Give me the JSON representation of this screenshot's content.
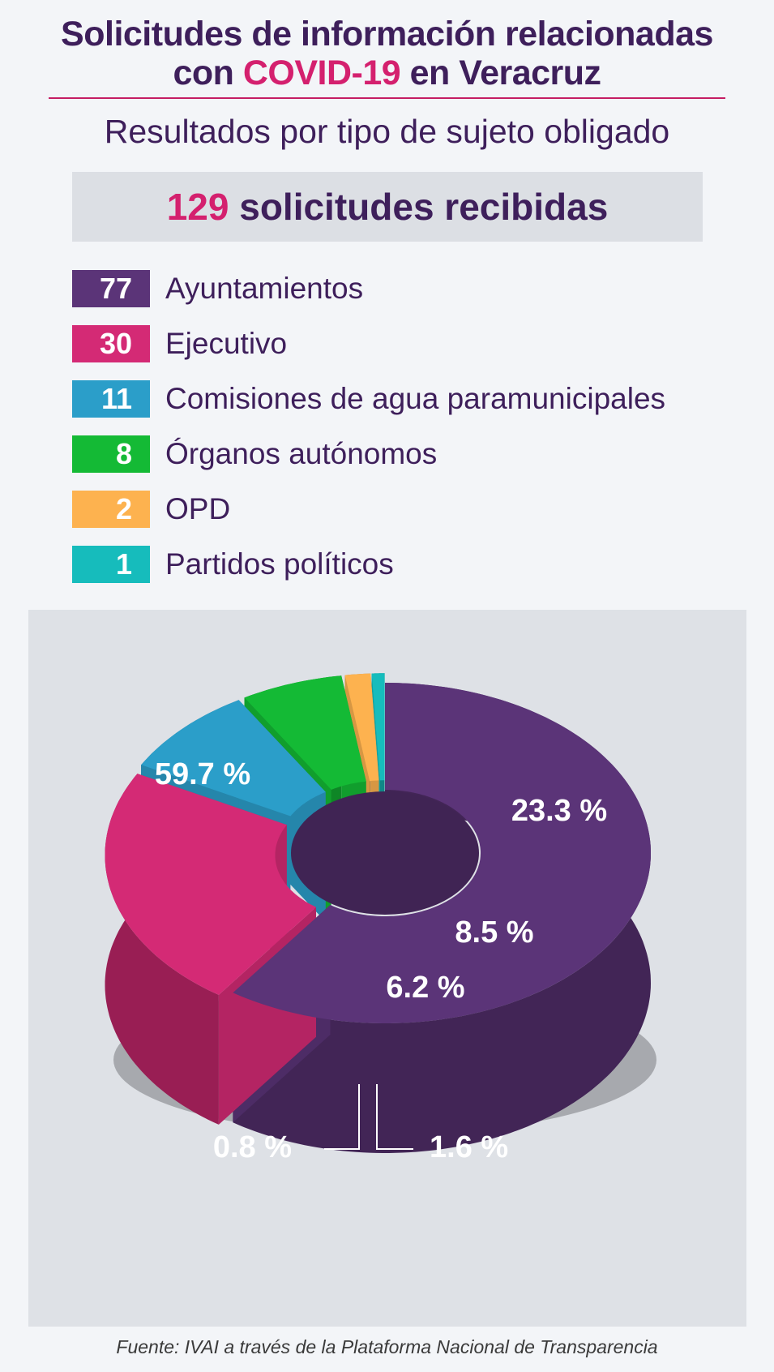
{
  "header": {
    "title_line1": "Solicitudes de información relacionadas",
    "title_line2_pre": "con ",
    "title_line2_accent": "COVID-19",
    "title_line2_post": " en Veracruz",
    "subtitle": "Resultados por tipo de sujeto obligado"
  },
  "total": {
    "number": "129",
    "label": " solicitudes recibidas"
  },
  "legend": [
    {
      "count": "77",
      "label": "Ayuntamientos",
      "color": "#5b3478"
    },
    {
      "count": "30",
      "label": "Ejecutivo",
      "color": "#d42a75"
    },
    {
      "count": "11",
      "label": "Comisiones de agua paramunicipales",
      "color": "#2b9ec9"
    },
    {
      "count": "8",
      "label": "Órganos autónomos",
      "color": "#14ba35"
    },
    {
      "count": "2",
      "label": "OPD",
      "color": "#fdb24f"
    },
    {
      "count": "1",
      "label": "Partidos políticos",
      "color": "#16bcbc"
    }
  ],
  "chart_data": {
    "type": "pie",
    "categories": [
      "Ayuntamientos",
      "Ejecutivo",
      "Comisiones de agua paramunicipales",
      "Órganos autónomos",
      "OPD",
      "Partidos políticos"
    ],
    "values": [
      77,
      30,
      11,
      8,
      2,
      1
    ],
    "percent_labels": [
      "59.7 %",
      "23.3 %",
      "8.5 %",
      "6.2 %",
      "1.6 %",
      "0.8 %"
    ],
    "colors": [
      "#5b3478",
      "#d42a75",
      "#2b9ec9",
      "#14ba35",
      "#fdb24f",
      "#16bcbc"
    ],
    "style": "3d-donut-exploded"
  },
  "footer": {
    "source": "Fuente: IVAI a través de la Plataforma Nacional de Transparencia"
  }
}
